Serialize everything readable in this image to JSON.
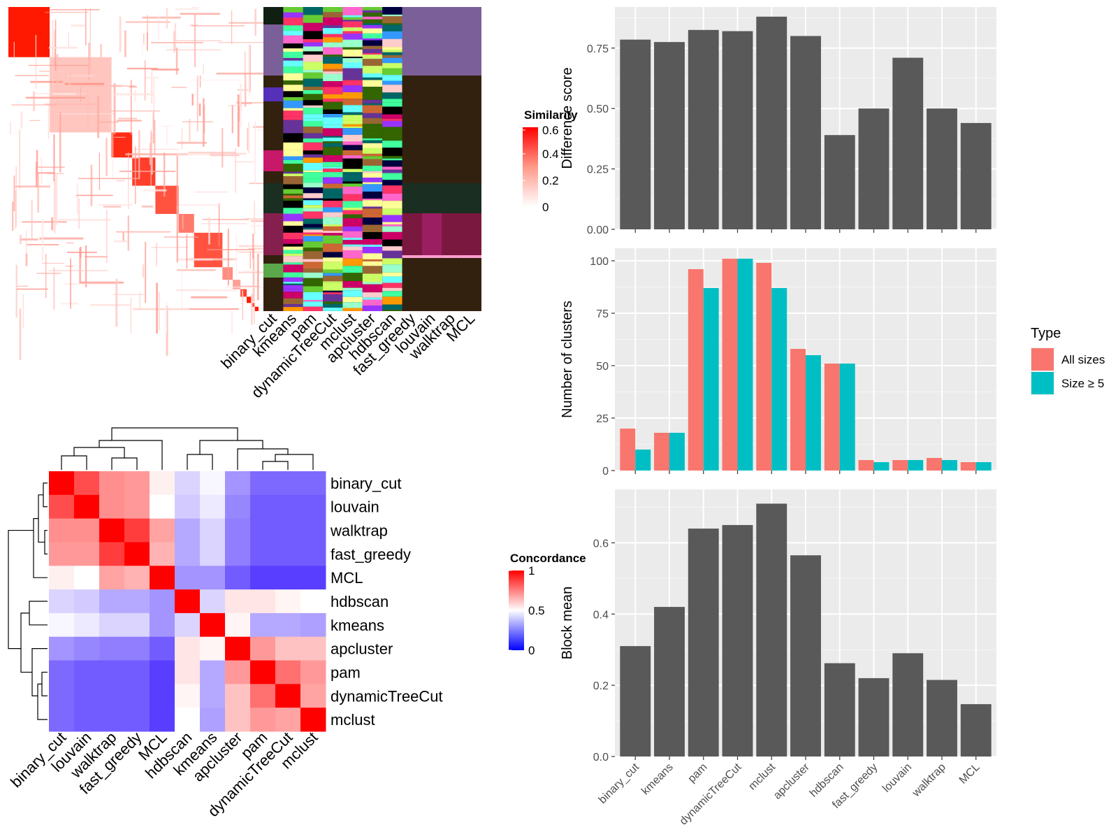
{
  "chart_data": [
    {
      "type": "heatmap",
      "name": "similarity-heatmap",
      "legend": {
        "title": "Similarity",
        "ticks": [
          "0",
          "0.2",
          "0.4",
          "0.6"
        ],
        "range": [
          0,
          0.6
        ]
      },
      "column_labels": [
        "binary_cut",
        "kmeans",
        "pam",
        "dynamicTreeCut",
        "mclust",
        "apcluster",
        "hdbscan",
        "fast_greedy",
        "louvain",
        "walktrap",
        "MCL"
      ],
      "diagonal_blocks": [
        0.75,
        0.15,
        0.55,
        0.5,
        0.45,
        0.35,
        0.45,
        0.3,
        0.25,
        0.5,
        0.6,
        0.9,
        0.9
      ]
    },
    {
      "type": "heatmap",
      "name": "concordance-heatmap",
      "legend": {
        "title": "Concordance",
        "ticks": [
          "0",
          "0.5",
          "1"
        ],
        "range": [
          0,
          1
        ]
      },
      "row_labels": [
        "binary_cut",
        "louvain",
        "walktrap",
        "fast_greedy",
        "MCL",
        "hdbscan",
        "kmeans",
        "apcluster",
        "pam",
        "dynamicTreeCut",
        "mclust"
      ],
      "column_labels": [
        "binary_cut",
        "louvain",
        "walktrap",
        "fast_greedy",
        "MCL",
        "hdbscan",
        "kmeans",
        "apcluster",
        "pam",
        "dynamicTreeCut",
        "mclust"
      ],
      "matrix": [
        [
          1.0,
          0.85,
          0.72,
          0.7,
          0.53,
          0.4,
          0.48,
          0.25,
          0.15,
          0.15,
          0.15
        ],
        [
          0.85,
          1.0,
          0.72,
          0.7,
          0.5,
          0.38,
          0.45,
          0.22,
          0.12,
          0.12,
          0.12
        ],
        [
          0.72,
          0.72,
          1.0,
          0.88,
          0.68,
          0.3,
          0.4,
          0.2,
          0.12,
          0.12,
          0.12
        ],
        [
          0.7,
          0.7,
          0.88,
          1.0,
          0.65,
          0.3,
          0.4,
          0.2,
          0.12,
          0.12,
          0.12
        ],
        [
          0.53,
          0.5,
          0.68,
          0.65,
          1.0,
          0.25,
          0.25,
          0.12,
          0.05,
          0.05,
          0.05
        ],
        [
          0.4,
          0.38,
          0.3,
          0.3,
          0.25,
          1.0,
          0.4,
          0.55,
          0.55,
          0.52,
          0.5
        ],
        [
          0.48,
          0.45,
          0.4,
          0.4,
          0.25,
          0.4,
          1.0,
          0.52,
          0.3,
          0.3,
          0.28
        ],
        [
          0.25,
          0.22,
          0.2,
          0.2,
          0.12,
          0.55,
          0.52,
          1.0,
          0.7,
          0.62,
          0.62
        ],
        [
          0.15,
          0.12,
          0.12,
          0.12,
          0.05,
          0.55,
          0.3,
          0.7,
          1.0,
          0.78,
          0.7
        ],
        [
          0.15,
          0.12,
          0.12,
          0.12,
          0.05,
          0.52,
          0.3,
          0.62,
          0.78,
          1.0,
          0.68
        ],
        [
          0.15,
          0.12,
          0.12,
          0.12,
          0.05,
          0.5,
          0.28,
          0.62,
          0.7,
          0.68,
          1.0
        ]
      ]
    },
    {
      "type": "bar",
      "name": "difference-score",
      "categories": [
        "binary_cut",
        "kmeans",
        "pam",
        "dynamicTreeCut",
        "mclust",
        "apcluster",
        "hdbscan",
        "fast_greedy",
        "louvain",
        "walktrap",
        "MCL"
      ],
      "values": [
        0.785,
        0.775,
        0.825,
        0.82,
        0.88,
        0.8,
        0.39,
        0.5,
        0.71,
        0.5,
        0.44
      ],
      "ylabel": "Difference score",
      "ylim": [
        0,
        0.92
      ],
      "yticks": [
        0,
        0.25,
        0.5,
        0.75
      ],
      "ytick_labels": [
        "0.00",
        "0.25",
        "0.50",
        "0.75"
      ],
      "grid": true
    },
    {
      "type": "bar",
      "name": "number-of-clusters",
      "categories": [
        "binary_cut",
        "kmeans",
        "pam",
        "dynamicTreeCut",
        "mclust",
        "apcluster",
        "hdbscan",
        "fast_greedy",
        "louvain",
        "walktrap",
        "MCL"
      ],
      "series": [
        {
          "name": "All sizes",
          "color": "#F8766D",
          "values": [
            20,
            18,
            96,
            101,
            99,
            58,
            51,
            5,
            5,
            6,
            4
          ]
        },
        {
          "name": "Size ≥ 5",
          "color": "#00BFC4",
          "values": [
            10,
            18,
            87,
            101,
            87,
            55,
            51,
            4,
            5,
            5,
            4
          ]
        }
      ],
      "ylabel": "Number of clusters",
      "ylim": [
        0,
        106
      ],
      "yticks": [
        0,
        25,
        50,
        75,
        100
      ],
      "ytick_labels": [
        "0",
        "25",
        "50",
        "75",
        "100"
      ],
      "legend": {
        "title": "Type",
        "placement": "right"
      },
      "grid": true
    },
    {
      "type": "bar",
      "name": "block-mean",
      "categories": [
        "binary_cut",
        "kmeans",
        "pam",
        "dynamicTreeCut",
        "mclust",
        "apcluster",
        "hdbscan",
        "fast_greedy",
        "louvain",
        "walktrap",
        "MCL"
      ],
      "values": [
        0.31,
        0.42,
        0.64,
        0.65,
        0.71,
        0.565,
        0.262,
        0.22,
        0.29,
        0.215,
        0.147
      ],
      "ylabel": "Block mean",
      "ylim": [
        0,
        0.75
      ],
      "yticks": [
        0,
        0.2,
        0.4,
        0.6
      ],
      "ytick_labels": [
        "0.0",
        "0.2",
        "0.4",
        "0.6"
      ],
      "grid": true
    }
  ]
}
